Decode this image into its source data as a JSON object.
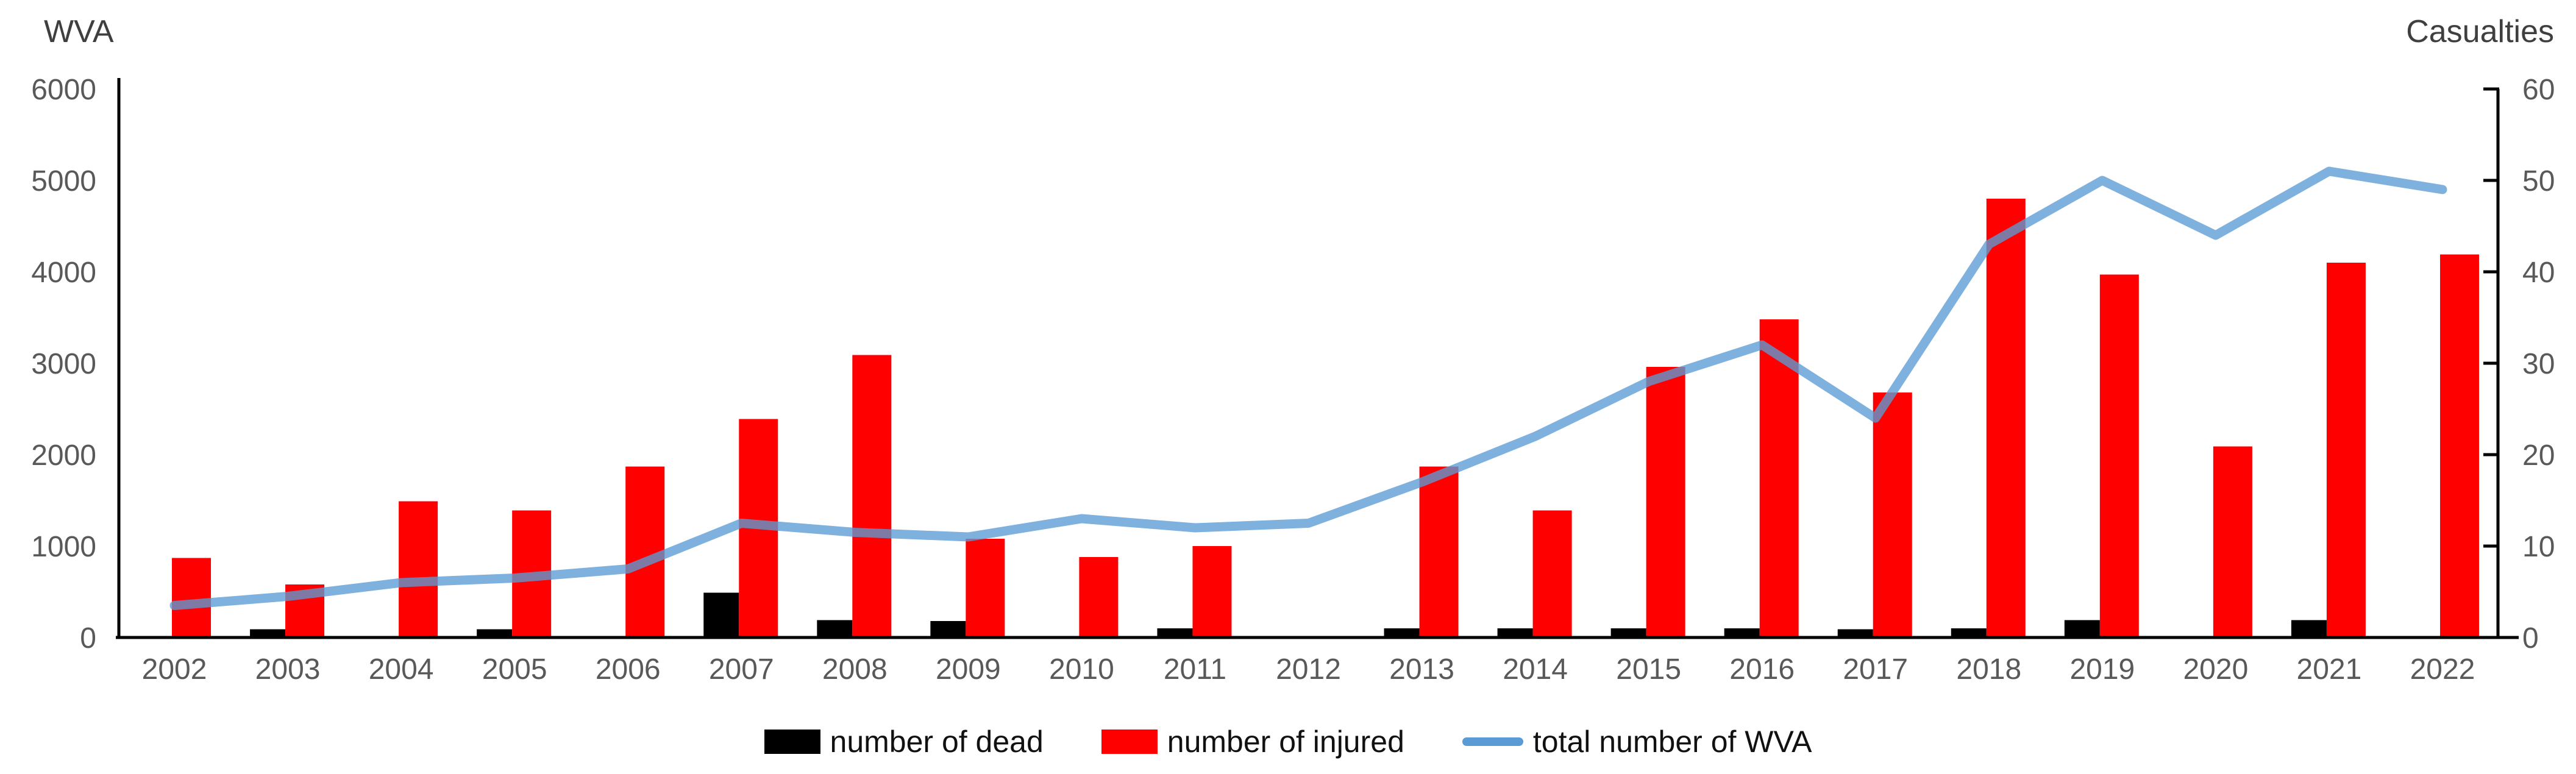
{
  "chart_data": {
    "type": "bar",
    "categories": [
      "2002",
      "2003",
      "2004",
      "2005",
      "2006",
      "2007",
      "2008",
      "2009",
      "2010",
      "2011",
      "2012",
      "2013",
      "2014",
      "2015",
      "2016",
      "2017",
      "2018",
      "2019",
      "2020",
      "2021",
      "2022"
    ],
    "series": [
      {
        "name": "number of dead",
        "type": "bar",
        "axis": "left",
        "color": "#000000",
        "values": [
          0,
          90,
          0,
          90,
          0,
          490,
          190,
          180,
          0,
          100,
          0,
          100,
          100,
          100,
          100,
          90,
          100,
          190,
          0,
          190,
          0
        ]
      },
      {
        "name": "number of injured",
        "type": "bar",
        "axis": "left",
        "color": "#ff0000",
        "values": [
          870,
          580,
          1490,
          1390,
          1870,
          2390,
          3090,
          1080,
          880,
          1000,
          0,
          1870,
          1390,
          2960,
          3480,
          2680,
          4800,
          3970,
          2090,
          4100,
          4190
        ]
      },
      {
        "name": "total number of WVA",
        "type": "line",
        "axis": "right",
        "color": "#5b9bd5",
        "values": [
          3.5,
          4.5,
          6,
          6.5,
          7.5,
          12.5,
          11.5,
          11,
          13,
          12,
          12.5,
          17,
          22,
          28,
          32,
          24,
          43,
          50,
          44,
          51,
          49
        ]
      }
    ],
    "left_axis": {
      "title": "WVA",
      "min": 0,
      "max": 6000,
      "step": 1000,
      "tick_labels": [
        "0",
        "1000",
        "2000",
        "3000",
        "4000",
        "5000",
        "6000"
      ]
    },
    "right_axis": {
      "title": "Casualties",
      "min": 0,
      "max": 60,
      "step": 10,
      "tick_labels": [
        "0",
        "10",
        "20",
        "30",
        "40",
        "50",
        "60"
      ]
    },
    "legend": [
      "number of dead",
      "number of injured",
      "total number of WVA"
    ],
    "legend_position": "bottom",
    "grid": false,
    "styles": {
      "tick_label_color": "#595959",
      "axis_color": "#000000",
      "line_opacity": 0.78
    }
  }
}
